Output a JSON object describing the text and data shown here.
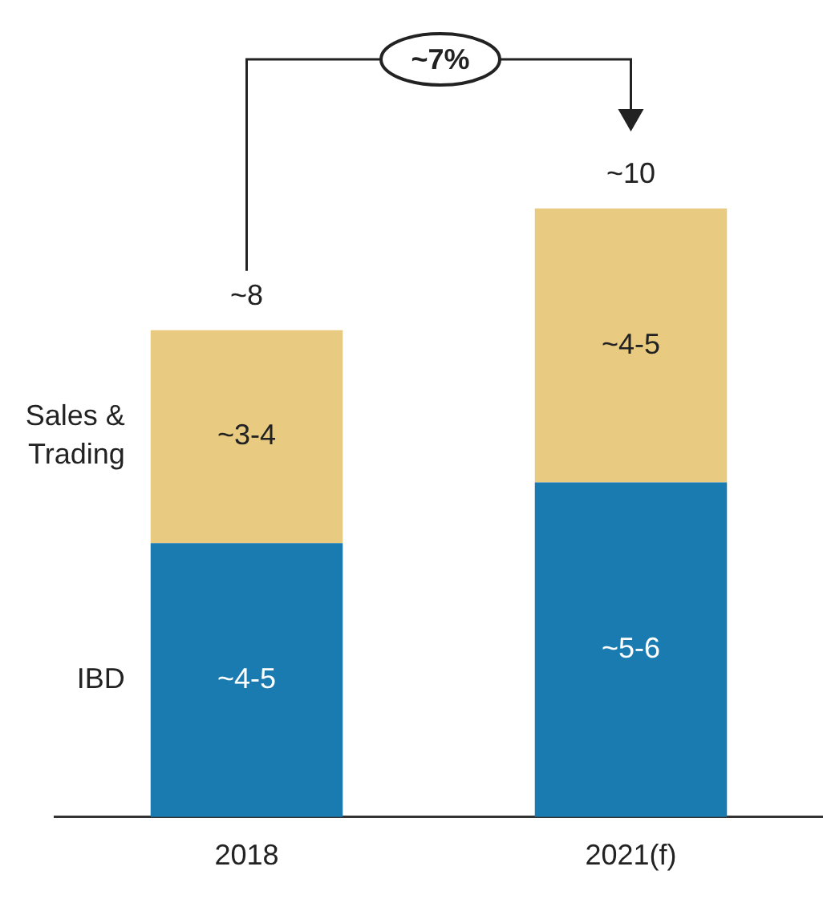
{
  "chart_data": {
    "type": "bar",
    "stacked": true,
    "categories": [
      "2018",
      "2021(f)"
    ],
    "series": [
      {
        "name": "IBD",
        "color": "#1a7bb0",
        "values": [
          4.5,
          5.5
        ],
        "value_labels": [
          "~4-5",
          "~5-6"
        ]
      },
      {
        "name": "Sales & Trading",
        "color": "#e8ca80",
        "values": [
          3.5,
          4.5
        ],
        "value_labels": [
          "~3-4",
          "~4-5"
        ]
      }
    ],
    "totals": [
      "~8",
      "~10"
    ],
    "annotations": [
      "~7%"
    ],
    "ylim": [
      0,
      10
    ],
    "tick_labels": "x",
    "legend": false,
    "grid": false
  }
}
